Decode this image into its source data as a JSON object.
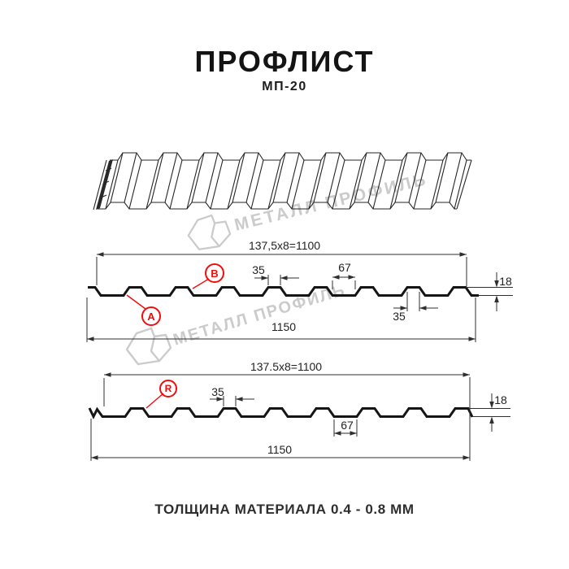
{
  "header": {
    "title": "ПРОФЛИСТ",
    "subtitle": "МП-20"
  },
  "footer": {
    "text": "ТОЛЩИНА МАТЕРИАЛА 0.4 - 0.8 ММ"
  },
  "watermark": {
    "text": "МЕТАЛЛ ПРОФИЛЬ"
  },
  "colors": {
    "accent_red": "#f20d0d",
    "drawing_line": "#151515",
    "dimension_line": "#2f2f2f",
    "watermark_gray": "#cbcbcb"
  },
  "profile_ab": {
    "working_width": "137,5x8=1100",
    "full_width": "1150",
    "rib_top_width_upper": "35",
    "valley_width": "67",
    "rib_top_width_lower": "35",
    "height": "18",
    "label_a": "A",
    "label_b": "B"
  },
  "profile_r": {
    "working_width": "137.5x8=1100",
    "full_width": "1150",
    "rib_top_width": "35",
    "valley_width": "67",
    "height": "18",
    "label_r": "R"
  }
}
